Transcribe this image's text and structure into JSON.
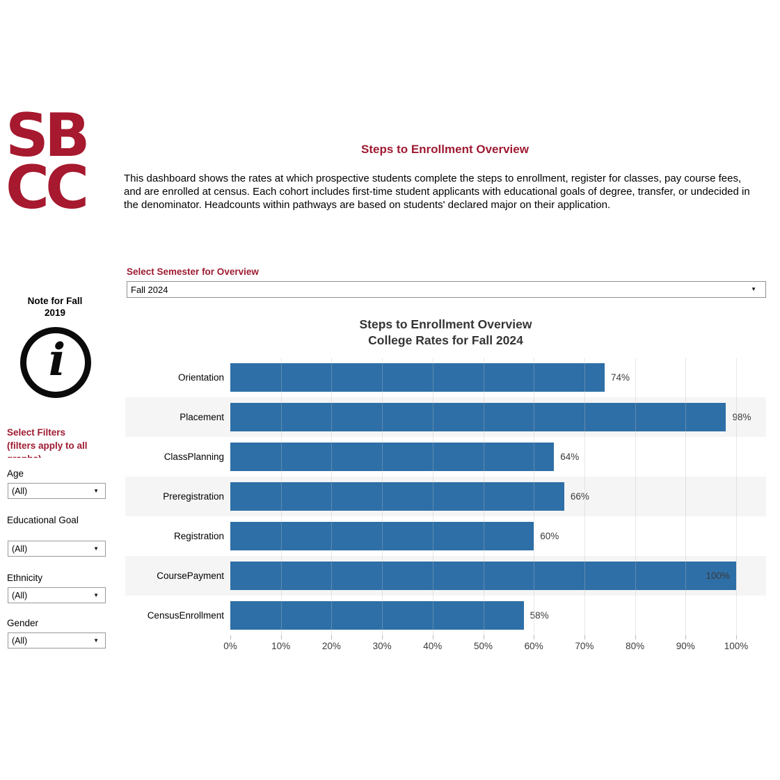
{
  "logo": {
    "line1": "SB",
    "line2": "CC",
    "color": "#A6192E"
  },
  "header": {
    "title": "Steps to Enrollment Overview",
    "description": "This dashboard shows the rates at which prospective students complete the steps to enrollment, register for classes, pay course fees, and are enrolled at census. Each cohort includes first-time student applicants with educational goals of degree, transfer, or undecided in the denominator. Headcounts within pathways are based on students' declared major on their application."
  },
  "semester_selector": {
    "label": "Select Semester for Overview",
    "value": "Fall 2024",
    "icon": "chevron-down-icon"
  },
  "sidebar": {
    "note_title": "Note for Fall 2019",
    "note_icon": "info-icon",
    "filters_heading_line1": "Select Filters",
    "filters_heading_line2": "(filters apply to all graphs)",
    "filters": [
      {
        "label": "Age",
        "value": "(All)"
      },
      {
        "label": "Educational Goal",
        "value": "(All)"
      },
      {
        "label": "Ethnicity",
        "value": "(All)"
      },
      {
        "label": "Gender",
        "value": "(All)"
      }
    ]
  },
  "chart_data": {
    "type": "bar",
    "orientation": "horizontal",
    "title": "Steps to Enrollment Overview",
    "subtitle": "College Rates for Fall 2024",
    "categories": [
      "Orientation",
      "Placement",
      "ClassPlanning",
      "Preregistration",
      "Registration",
      "CoursePayment",
      "CensusEnrollment"
    ],
    "values": [
      74,
      98,
      64,
      66,
      60,
      100,
      58
    ],
    "value_labels": [
      "74%",
      "98%",
      "64%",
      "66%",
      "60%",
      "100%",
      "58%"
    ],
    "x_ticks": [
      "0%",
      "10%",
      "20%",
      "30%",
      "40%",
      "50%",
      "60%",
      "70%",
      "80%",
      "90%",
      "100%"
    ],
    "xlim": [
      0,
      100
    ],
    "grid": true,
    "bar_color": "#2E6FA7",
    "band_color": "#F5F5F5",
    "legend": "none"
  },
  "colors": {
    "brand_red": "#A6192E",
    "heading_red": "#9E1B32",
    "bar_blue": "#2E6FA7",
    "band_gray": "#F5F5F5"
  }
}
